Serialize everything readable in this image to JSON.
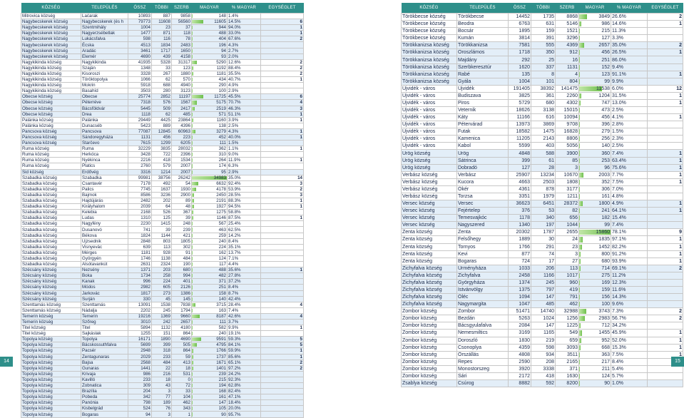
{
  "headers": [
    "KÖZSÉG",
    "TELEPÜLÉS",
    "ÖSSZ",
    "TÖBBI",
    "SZERB",
    "MAGYAR",
    "% MAGYAR",
    "EGYSÉGLET"
  ],
  "page_numbers": {
    "left": "14",
    "right": "15"
  },
  "left_rows": [
    [
      "Mitrovica község",
      "Laćarak",
      "10893",
      "887",
      "9858",
      "148",
      "1.4%",
      ""
    ],
    [
      "Nagybecskerek község",
      "Nagybecskerek (és h",
      "79773",
      "11608",
      "56560",
      "11605",
      "14.5%",
      "6"
    ],
    [
      "Nagybecskerek község",
      "Szentmihály",
      "1004",
      "23",
      "37",
      "944",
      "94.0%",
      "1"
    ],
    [
      "Nagybecskerek község",
      "Nagyerzsébetlak",
      "1477",
      "871",
      "118",
      "488",
      "33.0%",
      "1"
    ],
    [
      "Nagybecskerek község",
      "Lukácsfalva",
      "598",
      "116",
      "78",
      "404",
      "67.6%",
      "2"
    ],
    [
      "Nagybecskerek község",
      "Écska",
      "4513",
      "1834",
      "2483",
      "196",
      "4.3%",
      ""
    ],
    [
      "Nagybecskerek község",
      "Aradác",
      "3461",
      "1717",
      "1650",
      "94",
      "2.7%",
      ""
    ],
    [
      "Nagybecskerek község",
      "Elemér",
      "4690",
      "439",
      "4158",
      "93",
      "2.0%",
      ""
    ],
    [
      "Nagykikinda község",
      "Nagykikinda",
      "41935",
      "5328",
      "31317",
      "5290",
      "12.6%",
      "2"
    ],
    [
      "Nagykikinda község",
      "Szaján",
      "1348",
      "33",
      "123",
      "1192",
      "88.4%",
      "2"
    ],
    [
      "Nagykikinda község",
      "Kisoroszi",
      "3328",
      "267",
      "1880",
      "1181",
      "35.5%",
      "2"
    ],
    [
      "Nagykikinda község",
      "Töröktopolya",
      "1066",
      "62",
      "570",
      "434",
      "40.7%",
      "1"
    ],
    [
      "Nagykikinda község",
      "Mokrin",
      "5918",
      "688",
      "4940",
      "290",
      "4.9%",
      ""
    ],
    [
      "Nagykikinda község",
      "Basahíd",
      "3503",
      "280",
      "3123",
      "100",
      "2.9%",
      ""
    ],
    [
      "Óbecse község",
      "Óbecse",
      "25774",
      "2852",
      "11197",
      "11725",
      "45.5%",
      "6"
    ],
    [
      "Óbecse község",
      "Péterréve",
      "7318",
      "576",
      "1567",
      "5175",
      "70.7%",
      "4"
    ],
    [
      "Óbecse község",
      "Bácsföldvár",
      "5445",
      "509",
      "2417",
      "2519",
      "46.3%",
      "3"
    ],
    [
      "Óbecse község",
      "Drea",
      "1118",
      "62",
      "485",
      "571",
      "51.1%",
      "1"
    ],
    [
      "Palánka község",
      "Palánka",
      "29449",
      "4425",
      "23864",
      "1160",
      "3.9%",
      "1"
    ],
    [
      "Palánka község",
      "Dunacséb",
      "5423",
      "889",
      "4396",
      "138",
      "2.5%",
      ""
    ],
    [
      "Pancsova község",
      "Pancsova",
      "77087",
      "12845",
      "60963",
      "3279",
      "4.3%",
      "1"
    ],
    [
      "Pancsova község",
      "Sándoregyháza",
      "1131",
      "456",
      "223",
      "452",
      "40.0%",
      "1"
    ],
    [
      "Pancsova község",
      "Starčevo",
      "7615",
      "1299",
      "6205",
      "111",
      "1.5%",
      ""
    ],
    [
      "Ruma község",
      "Ruma",
      "32229",
      "3835",
      "28032",
      "362",
      "1.1%",
      "1"
    ],
    [
      "Ruma község",
      "Herkóca",
      "3428",
      "722",
      "2396",
      "310",
      "9.0%",
      ""
    ],
    [
      "Ruma község",
      "Nyékinca",
      "2216",
      "418",
      "1534",
      "264",
      "11.9%",
      "1"
    ],
    [
      "Ruma község",
      "Platics",
      "2760",
      "579",
      "2007",
      "174",
      "6.3%",
      ""
    ],
    [
      "Sid község",
      "Erdővég",
      "3316",
      "1214",
      "2007",
      "95",
      "2.9%",
      ""
    ],
    [
      "Szabadka község",
      "Szabadka",
      "99981",
      "38756",
      "26242",
      "34983",
      "35.0%",
      "14"
    ],
    [
      "Szabadka község",
      "Csantavér",
      "7178",
      "492",
      "54",
      "6632",
      "92.4%",
      "3"
    ],
    [
      "Szabadka község",
      "Palics",
      "7745",
      "1637",
      "1930",
      "4178",
      "53.9%",
      "2"
    ],
    [
      "Szabadka község",
      "Bajmok",
      "8586",
      "3236",
      "2900",
      "2450",
      "28.5%",
      "3"
    ],
    [
      "Szabadka község",
      "Hajdújárás",
      "2482",
      "202",
      "89",
      "2191",
      "88.3%",
      "1"
    ],
    [
      "Szabadka község",
      "Királyhalom",
      "2039",
      "64",
      "48",
      "1927",
      "94.5%",
      "1"
    ],
    [
      "Szabadka község",
      "Kelebia",
      "2168",
      "526",
      "367",
      "1275",
      "58.8%",
      ""
    ],
    [
      "Szabadka község",
      "Ludas",
      "1310",
      "125",
      "39",
      "1146",
      "87.5%",
      "1"
    ],
    [
      "Szabadka község",
      "Nagyfény",
      "2230",
      "1415",
      "248",
      "567",
      "25.4%",
      ""
    ],
    [
      "Szabadka község",
      "Dusanovó",
      "741",
      "39",
      "239",
      "463",
      "62.5%",
      ""
    ],
    [
      "Szabadka község",
      "Békova",
      "1824",
      "1144",
      "421",
      "259",
      "14.2%",
      ""
    ],
    [
      "Szabadka község",
      "Újzsednik",
      "2848",
      "803",
      "1805",
      "240",
      "8.4%",
      ""
    ],
    [
      "Szabadka község",
      "Visnyevác",
      "639",
      "113",
      "302",
      "224",
      "35.1%",
      ""
    ],
    [
      "Szabadka község",
      "Mérges",
      "1181",
      "928",
      "91",
      "162",
      "13.7%",
      ""
    ],
    [
      "Szabadka község",
      "Györgyén",
      "1746",
      "1138",
      "484",
      "124",
      "7.1%",
      ""
    ],
    [
      "Szabadka község",
      "Alsótavankút",
      "2631",
      "2324",
      "190",
      "117",
      "4.4%",
      ""
    ],
    [
      "Szécsány község",
      "Nezsény",
      "1371",
      "203",
      "680",
      "488",
      "35.6%",
      "1"
    ],
    [
      "Szécsány község",
      "Boka",
      "1734",
      "258",
      "994",
      "482",
      "27.8%",
      ""
    ],
    [
      "Szécsány község",
      "Kanak",
      "996",
      "224",
      "401",
      "371",
      "37.2%",
      ""
    ],
    [
      "Szécsány község",
      "Módos",
      "2982",
      "605",
      "2126",
      "251",
      "8.4%",
      ""
    ],
    [
      "Szécsány község",
      "Jarkovác",
      "1817",
      "273",
      "1386",
      "158",
      "8.7%",
      ""
    ],
    [
      "Szécsány község",
      "Surján",
      "330",
      "45",
      "145",
      "140",
      "42.4%",
      ""
    ],
    [
      "Szenttamás község",
      "Szenttamás",
      "13091",
      "1538",
      "7838",
      "3715",
      "28.4%",
      "4"
    ],
    [
      "Szenttamás község",
      "Nádalja",
      "2202",
      "245",
      "1794",
      "163",
      "7.4%",
      ""
    ],
    [
      "Temerin község",
      "Temerin",
      "19216",
      "1369",
      "9660",
      "8187",
      "42.6%",
      "4"
    ],
    [
      "Temerin község",
      "Szőreg",
      "3010",
      "242",
      "2657",
      "111",
      "3.7%",
      ""
    ],
    [
      "Titel község",
      "Titel",
      "5894",
      "1132",
      "4180",
      "582",
      "9.9%",
      "1"
    ],
    [
      "Titel község",
      "Sajkáslak",
      "1255",
      "151",
      "864",
      "240",
      "19.1%",
      ""
    ],
    [
      "Topolya község",
      "Topolya",
      "16171",
      "1890",
      "4690",
      "9591",
      "59.3%",
      "5"
    ],
    [
      "Topolya község",
      "Bácskossuthfalva",
      "5699",
      "399",
      "505",
      "4795",
      "84.1%",
      "5"
    ],
    [
      "Topolya község",
      "Pacsér",
      "2948",
      "318",
      "864",
      "1766",
      "59.9%",
      "1"
    ],
    [
      "Topolya község",
      "Zentagunaras",
      "2029",
      "233",
      "59",
      "1737",
      "85.6%",
      "1"
    ],
    [
      "Topolya község",
      "Bajsa",
      "2568",
      "484",
      "413",
      "1671",
      "65.1%",
      "2"
    ],
    [
      "Topolya község",
      "Gunaras",
      "1441",
      "22",
      "18",
      "1401",
      "97.2%",
      "2"
    ],
    [
      "Topolya község",
      "Krivaja",
      "986",
      "216",
      "531",
      "239",
      "24.2%",
      ""
    ],
    [
      "Topolya község",
      "Kavilló",
      "233",
      "18",
      "0",
      "215",
      "92.3%",
      ""
    ],
    [
      "Topolya község",
      "Zobnatica",
      "309",
      "43",
      "72",
      "194",
      "62.8%",
      ""
    ],
    [
      "Topolya község",
      "Brazília",
      "204",
      "3",
      "33",
      "168",
      "82.4%",
      ""
    ],
    [
      "Topolya község",
      "Pobeda",
      "342",
      "77",
      "104",
      "161",
      "47.1%",
      ""
    ],
    [
      "Topolya község",
      "Panónia",
      "798",
      "189",
      "462",
      "147",
      "18.4%",
      ""
    ],
    [
      "Topolya község",
      "Kisbelgrád",
      "524",
      "76",
      "343",
      "105",
      "20.0%",
      ""
    ],
    [
      "Topolya község",
      "Bogaras",
      "94",
      "3",
      "1",
      "90",
      "95.7%",
      ""
    ]
  ],
  "right_rows": [
    [
      "Törökbecse község",
      "Törökbecse",
      "14452",
      "1735",
      "8868",
      "3849",
      "26.6%",
      "2"
    ],
    [
      "Törökbecse község",
      "Beodra",
      "6763",
      "631",
      "5146",
      "986",
      "14.6%",
      "1"
    ],
    [
      "Törökbecse község",
      "Bocsár",
      "1895",
      "159",
      "1521",
      "215",
      "11.3%",
      ""
    ],
    [
      "Törökbecse község",
      "Kumán",
      "3814",
      "391",
      "3296",
      "127",
      "3.3%",
      ""
    ],
    [
      "Törökkanizsa község",
      "Törökkanizsa",
      "7581",
      "555",
      "4369",
      "2657",
      "35.0%",
      "2"
    ],
    [
      "Törökkanizsa község",
      "Oroszlámos",
      "1718",
      "350",
      "912",
      "456",
      "26.5%",
      "1"
    ],
    [
      "Törökkanizsa község",
      "Majdány",
      "292",
      "25",
      "16",
      "251",
      "86.0%",
      ""
    ],
    [
      "Törökkanizsa község",
      "Szerbkeresztúr",
      "1620",
      "337",
      "1131",
      "152",
      "9.4%",
      ""
    ],
    [
      "Törökkanizsa község",
      "Rabé",
      "135",
      "8",
      "4",
      "123",
      "91.1%",
      "1"
    ],
    [
      "Törökkanizsa község",
      "Gyála",
      "1004",
      "101",
      "804",
      "99",
      "9.9%",
      ""
    ],
    [
      "Újvidék - város",
      "Újvidék",
      "191405",
      "38392",
      "141475",
      "11538",
      "6.0%",
      "12"
    ],
    [
      "Újvidék - város",
      "Budiszava",
      "3825",
      "361",
      "2260",
      "1204",
      "31.5%",
      "1"
    ],
    [
      "Újvidék - város",
      "Piros",
      "5729",
      "680",
      "4302",
      "747",
      "13.0%",
      "1"
    ],
    [
      "Újvidék - város",
      "Veternik",
      "18626",
      "3138",
      "15015",
      "473",
      "2.5%",
      ""
    ],
    [
      "Újvidék - város",
      "Káty",
      "11166",
      "616",
      "10094",
      "456",
      "4.1%",
      "1"
    ],
    [
      "Újvidék - város",
      "Pétervárad",
      "13973",
      "3869",
      "9708",
      "396",
      "2.8%",
      ""
    ],
    [
      "Újvidék - város",
      "Futak",
      "18582",
      "1475",
      "16828",
      "279",
      "1.5%",
      ""
    ],
    [
      "Újvidék - város",
      "Kamenica",
      "11205",
      "2143",
      "8806",
      "256",
      "2.3%",
      ""
    ],
    [
      "Újvidék - város",
      "Kabol",
      "5599",
      "403",
      "5056",
      "140",
      "2.5%",
      ""
    ],
    [
      "Urög község",
      "Urög",
      "4848",
      "588",
      "3900",
      "360",
      "7.4%",
      "1"
    ],
    [
      "Urög község",
      "Sátrinca",
      "399",
      "61",
      "85",
      "253",
      "63.4%",
      "1"
    ],
    [
      "Urög község",
      "Dobradó",
      "127",
      "28",
      "3",
      "96",
      "75.6%",
      "1"
    ],
    [
      "Verbász község",
      "Verbász",
      "25907",
      "13234",
      "10670",
      "2003",
      "7.7%",
      "1"
    ],
    [
      "Verbász község",
      "Kucora",
      "4663",
      "2503",
      "1808",
      "352",
      "7.5%",
      "1"
    ],
    [
      "Verbász község",
      "Ókér",
      "4361",
      "878",
      "3177",
      "306",
      "7.0%",
      ""
    ],
    [
      "Verbász község",
      "Torzsa",
      "3351",
      "1979",
      "1211",
      "161",
      "4.8%",
      ""
    ],
    [
      "Versec község",
      "Versec",
      "36623",
      "6451",
      "28372",
      "1800",
      "4.9%",
      "1"
    ],
    [
      "Versec község",
      "Fejértelep",
      "376",
      "53",
      "82",
      "241",
      "64.1%",
      "1"
    ],
    [
      "Versec község",
      "Temesvajkóc",
      "1178",
      "340",
      "656",
      "182",
      "15.4%",
      ""
    ],
    [
      "Versec község",
      "Nagyszered",
      "1340",
      "197",
      "1044",
      "99",
      "7.4%",
      ""
    ],
    [
      "Zenta község",
      "Zenta",
      "20302",
      "1787",
      "2655",
      "15860",
      "78.1%",
      "9"
    ],
    [
      "Zenta község",
      "Felsőhegy",
      "1889",
      "30",
      "24",
      "1835",
      "97.1%",
      "1"
    ],
    [
      "Zenta község",
      "Tornyos",
      "1766",
      "291",
      "23",
      "1452",
      "82.2%",
      "1"
    ],
    [
      "Zenta község",
      "Kevi",
      "877",
      "74",
      "3",
      "800",
      "91.2%",
      "1"
    ],
    [
      "Zenta község",
      "Bogaras",
      "724",
      "17",
      "27",
      "680",
      "93.9%",
      "1"
    ],
    [
      "Zichyfalva község",
      "Ürményháza",
      "1033",
      "206",
      "113",
      "714",
      "69.1%",
      "2"
    ],
    [
      "Zichyfalva község",
      "Zichyfalva",
      "2458",
      "1166",
      "1017",
      "275",
      "11.2%",
      ""
    ],
    [
      "Zichyfalva község",
      "Györgyháza",
      "1374",
      "245",
      "960",
      "169",
      "12.3%",
      ""
    ],
    [
      "Zichyfalva község",
      "Istvánvölgy",
      "1375",
      "797",
      "419",
      "159",
      "11.6%",
      ""
    ],
    [
      "Zichyfalva község",
      "Óléc",
      "1094",
      "147",
      "791",
      "156",
      "14.3%",
      ""
    ],
    [
      "Zichyfalva község",
      "Nagymargita",
      "1047",
      "485",
      "462",
      "100",
      "9.6%",
      ""
    ],
    [
      "Zombor község",
      "Zombor",
      "51471",
      "14740",
      "32988",
      "3743",
      "7.3%",
      "2"
    ],
    [
      "Zombor község",
      "Bezdán",
      "5263",
      "1024",
      "1256",
      "2983",
      "56.7%",
      "2"
    ],
    [
      "Zombor község",
      "Bácsgyulafalva",
      "2084",
      "147",
      "1225",
      "712",
      "34.2%",
      ""
    ],
    [
      "Zombor község",
      "Nemesmiltics",
      "3169",
      "1165",
      "549",
      "1455",
      "45.9%",
      "1"
    ],
    [
      "Zombor község",
      "Doroszló",
      "1830",
      "219",
      "659",
      "952",
      "52.0%",
      "1"
    ],
    [
      "Zombor község",
      "Csonoplya",
      "4359",
      "598",
      "3093",
      "668",
      "15.3%",
      "1"
    ],
    [
      "Zombor község",
      "Őrszállás",
      "4808",
      "934",
      "3511",
      "363",
      "7.5%",
      "1"
    ],
    [
      "Zombor község",
      "Repes",
      "2590",
      "208",
      "2165",
      "217",
      "8.4%",
      ""
    ],
    [
      "Zombor község",
      "Monostorszeg",
      "3920",
      "3338",
      "371",
      "211",
      "5.4%",
      ""
    ],
    [
      "Zombor község",
      "Sári",
      "2172",
      "418",
      "1630",
      "124",
      "5.7%",
      ""
    ],
    [
      "Zsablya község",
      "Csúrog",
      "8882",
      "592",
      "8200",
      "90",
      "1.0%",
      ""
    ]
  ]
}
